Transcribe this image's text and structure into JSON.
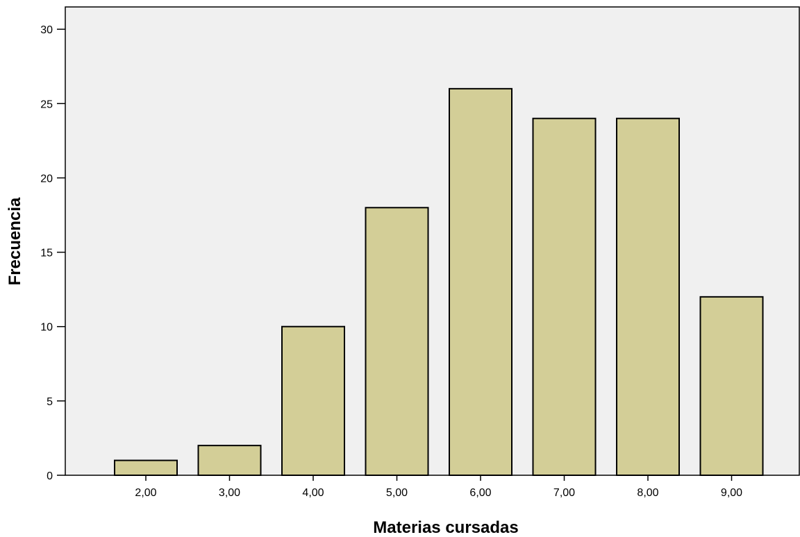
{
  "chart_data": {
    "type": "bar",
    "title": "",
    "xlabel": "Materias cursadas",
    "ylabel": "Frecuencia",
    "categories": [
      "2,00",
      "3,00",
      "4,00",
      "5,00",
      "6,00",
      "7,00",
      "8,00",
      "9,00"
    ],
    "values": [
      1,
      2,
      10,
      18,
      26,
      24,
      24,
      12
    ],
    "ylim": [
      0,
      31.5
    ],
    "yticks": [
      "0",
      "5",
      "10",
      "15",
      "20",
      "25",
      "30"
    ],
    "grid": false,
    "legend": "none",
    "colors": {
      "plot_background": "#f0f0f0",
      "bar_fill": "#d3ce97",
      "bar_stroke": "#000000"
    }
  }
}
